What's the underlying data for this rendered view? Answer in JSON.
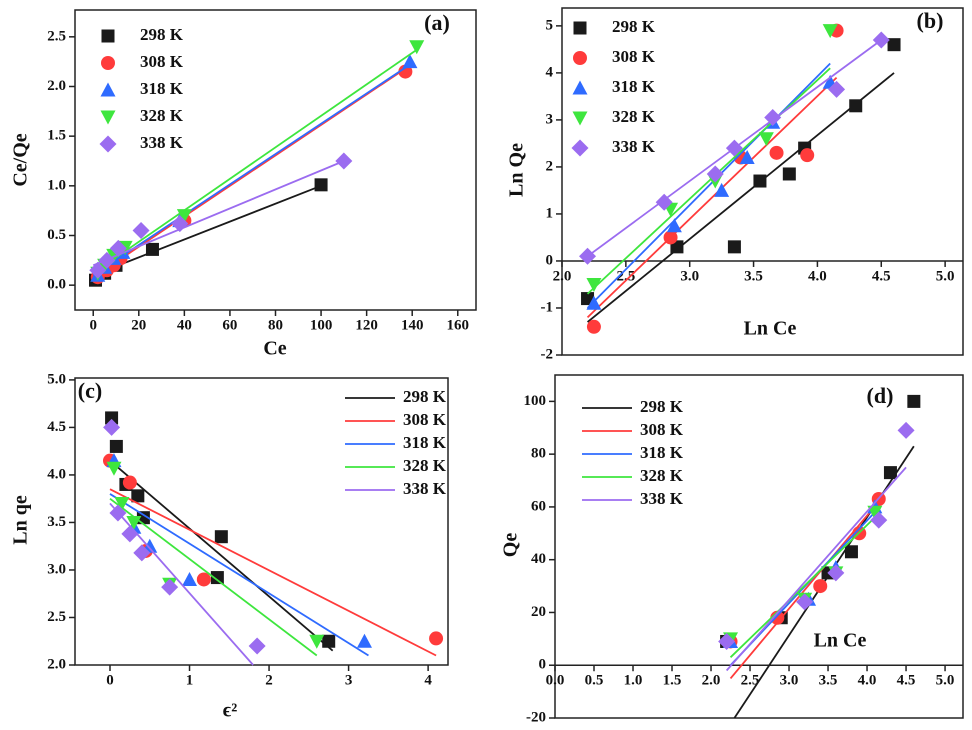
{
  "chart_data": [
    {
      "type": "scatter",
      "title": "(a)",
      "x_label": "Ce",
      "y_label": "Ce/Qe",
      "xlim": [
        -8,
        168
      ],
      "ylim": [
        -0.25,
        2.77
      ],
      "xticks": [
        0,
        20,
        40,
        60,
        80,
        100,
        120,
        140,
        160
      ],
      "yticks": [
        {
          "value": 0,
          "label": "0.0"
        },
        0.5,
        {
          "value": 1,
          "label": "1.0"
        },
        1.5,
        {
          "value": 2,
          "label": "2.0"
        },
        2.5
      ],
      "legend": "upper left",
      "legend_symbol": "marker",
      "x_axis_position": "bottom",
      "series": [
        {
          "name": "298 K",
          "color": "#1a1a1a",
          "marker": "square",
          "x": [
            1,
            5,
            10,
            26,
            100
          ],
          "values": [
            0.05,
            0.12,
            0.2,
            0.36,
            1.01
          ],
          "fit_x": [
            0,
            100
          ],
          "fit_y": [
            0.1,
            1.0
          ]
        },
        {
          "name": "308 K",
          "color": "#ff3b3b",
          "marker": "circle",
          "x": [
            2,
            6,
            9,
            12,
            40,
            137
          ],
          "values": [
            0.08,
            0.15,
            0.2,
            0.27,
            0.65,
            2.15
          ],
          "fit_x": [
            0,
            137
          ],
          "fit_y": [
            0.08,
            2.18
          ]
        },
        {
          "name": "318 K",
          "color": "#2f6bff",
          "marker": "triangle-up",
          "x": [
            2,
            5,
            9,
            13,
            38,
            139
          ],
          "values": [
            0.1,
            0.18,
            0.27,
            0.33,
            0.65,
            2.25
          ],
          "fit_x": [
            0,
            139
          ],
          "fit_y": [
            0.1,
            2.22
          ]
        },
        {
          "name": "328 K",
          "color": "#3ee63e",
          "marker": "triangle-down",
          "x": [
            2,
            5,
            9,
            14,
            40,
            142
          ],
          "values": [
            0.12,
            0.2,
            0.3,
            0.38,
            0.7,
            2.4
          ],
          "fit_x": [
            0,
            142
          ],
          "fit_y": [
            0.12,
            2.37
          ]
        },
        {
          "name": "338 K",
          "color": "#9b6cf0",
          "marker": "diamond",
          "x": [
            2,
            6,
            11,
            21,
            38,
            110
          ],
          "values": [
            0.15,
            0.25,
            0.37,
            0.55,
            0.62,
            1.25
          ],
          "fit_x": [
            0,
            110
          ],
          "fit_y": [
            0.2,
            1.25
          ]
        }
      ]
    },
    {
      "type": "scatter",
      "title": "(b)",
      "x_label": "Ln Ce",
      "y_label": "Ln Qe",
      "xlim": [
        2.0,
        5.14
      ],
      "ylim": [
        -2,
        5.38
      ],
      "xticks": [
        {
          "value": 2,
          "label": "2.0"
        },
        2.5,
        {
          "value": 3,
          "label": "3.0"
        },
        3.5,
        {
          "value": 4,
          "label": "4.0"
        },
        4.5,
        {
          "value": 5,
          "label": "5.0"
        }
      ],
      "yticks": [
        -2,
        -1,
        0,
        1,
        2,
        3,
        4,
        5
      ],
      "legend": "upper left",
      "legend_symbol": "marker",
      "x_axis_position": "zero",
      "series": [
        {
          "name": "298 K",
          "color": "#1a1a1a",
          "marker": "square",
          "x": [
            2.2,
            2.9,
            3.35,
            3.55,
            3.78,
            3.9,
            4.3,
            4.6
          ],
          "values": [
            -0.8,
            0.3,
            0.3,
            1.7,
            1.85,
            2.4,
            3.3,
            4.6
          ],
          "fit_x": [
            2.2,
            4.6
          ],
          "fit_y": [
            -1.3,
            4.0
          ]
        },
        {
          "name": "308 K",
          "color": "#ff3b3b",
          "marker": "circle",
          "x": [
            2.25,
            2.85,
            3.4,
            3.68,
            3.92,
            4.15
          ],
          "values": [
            -1.4,
            0.5,
            2.2,
            2.3,
            2.25,
            4.9
          ],
          "fit_x": [
            2.2,
            4.15
          ],
          "fit_y": [
            -1.2,
            3.9
          ]
        },
        {
          "name": "318 K",
          "color": "#2f6bff",
          "marker": "triangle-up",
          "x": [
            2.25,
            2.88,
            3.25,
            3.45,
            3.65,
            4.1
          ],
          "values": [
            -0.9,
            0.75,
            1.5,
            2.2,
            2.95,
            3.8
          ],
          "fit_x": [
            2.2,
            4.1
          ],
          "fit_y": [
            -1.0,
            4.2
          ]
        },
        {
          "name": "328 K",
          "color": "#3ee63e",
          "marker": "triangle-down",
          "x": [
            2.25,
            2.85,
            3.2,
            3.6,
            4.1
          ],
          "values": [
            -0.5,
            1.1,
            1.7,
            2.6,
            4.9
          ],
          "fit_x": [
            2.2,
            4.1
          ],
          "fit_y": [
            -0.7,
            4.1
          ]
        },
        {
          "name": "338 K",
          "color": "#9b6cf0",
          "marker": "diamond",
          "x": [
            2.2,
            2.8,
            3.2,
            3.35,
            3.65,
            4.15,
            4.5
          ],
          "values": [
            0.1,
            1.25,
            1.85,
            2.4,
            3.05,
            3.65,
            4.7
          ],
          "fit_x": [
            2.2,
            4.5
          ],
          "fit_y": [
            0.1,
            4.7
          ]
        }
      ]
    },
    {
      "type": "scatter",
      "title": "(c)",
      "x_label": "ϵ²",
      "y_label": "Ln qe",
      "xlim": [
        -0.44,
        4.25
      ],
      "ylim": [
        2.0,
        5.02
      ],
      "xticks": [
        0,
        1,
        2,
        3,
        4
      ],
      "yticks": [
        {
          "value": 2,
          "label": "2.0"
        },
        2.5,
        {
          "value": 3,
          "label": "3.0"
        },
        3.5,
        {
          "value": 4,
          "label": "4.0"
        },
        4.5,
        {
          "value": 5,
          "label": "5.0"
        }
      ],
      "legend": "upper right",
      "legend_symbol": "line",
      "x_axis_position": "bottom",
      "series": [
        {
          "name": "298 K",
          "color": "#1a1a1a",
          "marker": "square",
          "x": [
            0.02,
            0.08,
            0.2,
            0.35,
            0.42,
            1.4,
            1.35,
            2.75
          ],
          "values": [
            4.6,
            4.3,
            3.9,
            3.78,
            3.55,
            3.35,
            2.92,
            2.25
          ],
          "fit_x": [
            0,
            2.8
          ],
          "fit_y": [
            4.15,
            2.15
          ]
        },
        {
          "name": "308 K",
          "color": "#ff3b3b",
          "marker": "circle",
          "x": [
            0,
            0.25,
            0.45,
            1.18,
            4.1
          ],
          "values": [
            4.15,
            3.92,
            3.2,
            2.9,
            2.28
          ],
          "fit_x": [
            0,
            4.1
          ],
          "fit_y": [
            3.85,
            2.1
          ]
        },
        {
          "name": "318 K",
          "color": "#2f6bff",
          "marker": "triangle-up",
          "x": [
            0.05,
            0.3,
            0.5,
            1.0,
            3.2
          ],
          "values": [
            4.15,
            3.45,
            3.25,
            2.9,
            2.25
          ],
          "fit_x": [
            0,
            3.25
          ],
          "fit_y": [
            3.8,
            2.1
          ]
        },
        {
          "name": "328 K",
          "color": "#3ee63e",
          "marker": "triangle-down",
          "x": [
            0.05,
            0.15,
            0.3,
            0.75,
            2.6
          ],
          "values": [
            4.07,
            3.7,
            3.5,
            2.85,
            2.25
          ],
          "fit_x": [
            0,
            2.6
          ],
          "fit_y": [
            3.75,
            2.1
          ]
        },
        {
          "name": "338 K",
          "color": "#9b6cf0",
          "marker": "diamond",
          "x": [
            0.02,
            0.1,
            0.25,
            0.4,
            0.75,
            1.85
          ],
          "values": [
            4.5,
            3.6,
            3.38,
            3.18,
            2.82,
            2.2
          ],
          "fit_x": [
            0,
            1.8
          ],
          "fit_y": [
            3.7,
            2.0
          ]
        }
      ]
    },
    {
      "type": "scatter",
      "title": "(d)",
      "x_label": "Ln Ce",
      "y_label": "Qe",
      "xlim": [
        0,
        5.23
      ],
      "ylim": [
        -20,
        110
      ],
      "xticks": [
        {
          "value": 0,
          "label": "0.0"
        },
        0.5,
        {
          "value": 1,
          "label": "1.0"
        },
        1.5,
        {
          "value": 2,
          "label": "2.0"
        },
        2.5,
        {
          "value": 3,
          "label": "3.0"
        },
        3.5,
        {
          "value": 4,
          "label": "4.0"
        },
        4.5,
        {
          "value": 5,
          "label": "5.0"
        }
      ],
      "yticks": [
        -20,
        0,
        20,
        40,
        60,
        80,
        100
      ],
      "legend": "upper left",
      "legend_symbol": "line",
      "x_axis_position": "zero",
      "series": [
        {
          "name": "298 K",
          "color": "#1a1a1a",
          "marker": "square",
          "x": [
            2.2,
            2.9,
            3.5,
            3.8,
            4.3,
            4.6
          ],
          "values": [
            9,
            18,
            35,
            43,
            73,
            100
          ],
          "fit_x": [
            2.3,
            4.6
          ],
          "fit_y": [
            -20,
            83
          ]
        },
        {
          "name": "308 K",
          "color": "#ff3b3b",
          "marker": "circle",
          "x": [
            2.25,
            2.85,
            3.4,
            3.9,
            4.15
          ],
          "values": [
            9,
            18,
            30,
            50,
            63
          ],
          "fit_x": [
            2.25,
            4.15
          ],
          "fit_y": [
            -5,
            62
          ]
        },
        {
          "name": "318 K",
          "color": "#2f6bff",
          "marker": "triangle-up",
          "x": [
            2.25,
            3.25,
            3.6,
            4.1
          ],
          "values": [
            9,
            25,
            37,
            60
          ],
          "fit_x": [
            2.25,
            4.1
          ],
          "fit_y": [
            0,
            58
          ]
        },
        {
          "name": "328 K",
          "color": "#3ee63e",
          "marker": "triangle-down",
          "x": [
            2.25,
            3.2,
            3.6,
            4.1
          ],
          "values": [
            10,
            25,
            35,
            58
          ],
          "fit_x": [
            2.25,
            4.1
          ],
          "fit_y": [
            3,
            56
          ]
        },
        {
          "name": "338 K",
          "color": "#9b6cf0",
          "marker": "diamond",
          "x": [
            2.2,
            3.2,
            3.6,
            4.15,
            4.5
          ],
          "values": [
            9,
            24,
            35,
            55,
            89
          ],
          "fit_x": [
            2.2,
            4.5
          ],
          "fit_y": [
            -2,
            75
          ]
        }
      ]
    }
  ]
}
